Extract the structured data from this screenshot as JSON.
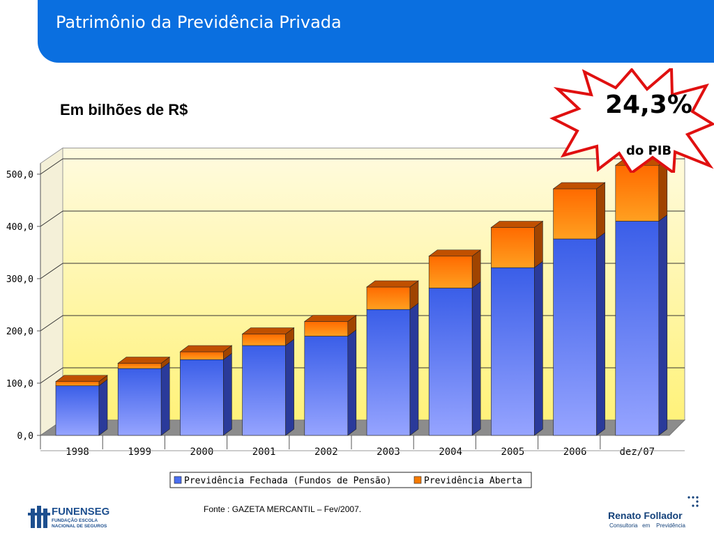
{
  "header": {
    "title": "Patrimônio da Previdência Privada"
  },
  "subtitle": "Em bilhões de R$",
  "callout": {
    "percent": "24,3%",
    "label": "do PIB"
  },
  "source": "Fonte : GAZETA MERCANTIL – Fev/2007.",
  "logos": {
    "left": {
      "name": "FUNENSEG",
      "sub": "FUNDAÇÃO ESCOLA NACIONAL DE SEGUROS"
    },
    "right": {
      "name": "Renato Follador",
      "sub": "Consultoria   em    Previdência"
    }
  },
  "colors": {
    "header": "#0a6fe0",
    "series_fechada": "#4a6ef0",
    "series_aberta": "#f57a00",
    "plot_bg": "#fff9b8"
  },
  "chart_data": {
    "type": "bar",
    "stacked": true,
    "categories": [
      "1998",
      "1999",
      "2000",
      "2001",
      "2002",
      "2003",
      "2004",
      "2005",
      "2006",
      "dez/07"
    ],
    "series": [
      {
        "name": "Previdência Fechada (Fundos de Pensão)",
        "values": [
          95,
          128,
          145,
          172,
          190,
          241,
          282,
          321,
          376,
          410
        ]
      },
      {
        "name": "Previdência Aberta",
        "values": [
          8,
          10,
          15,
          22,
          28,
          43,
          61,
          77,
          96,
          107
        ]
      }
    ],
    "yticks": [
      "0,0",
      "100,0",
      "200,0",
      "300,0",
      "400,0",
      "500,0"
    ],
    "ylim": [
      0,
      550
    ],
    "grid": true,
    "legend_position": "bottom"
  }
}
